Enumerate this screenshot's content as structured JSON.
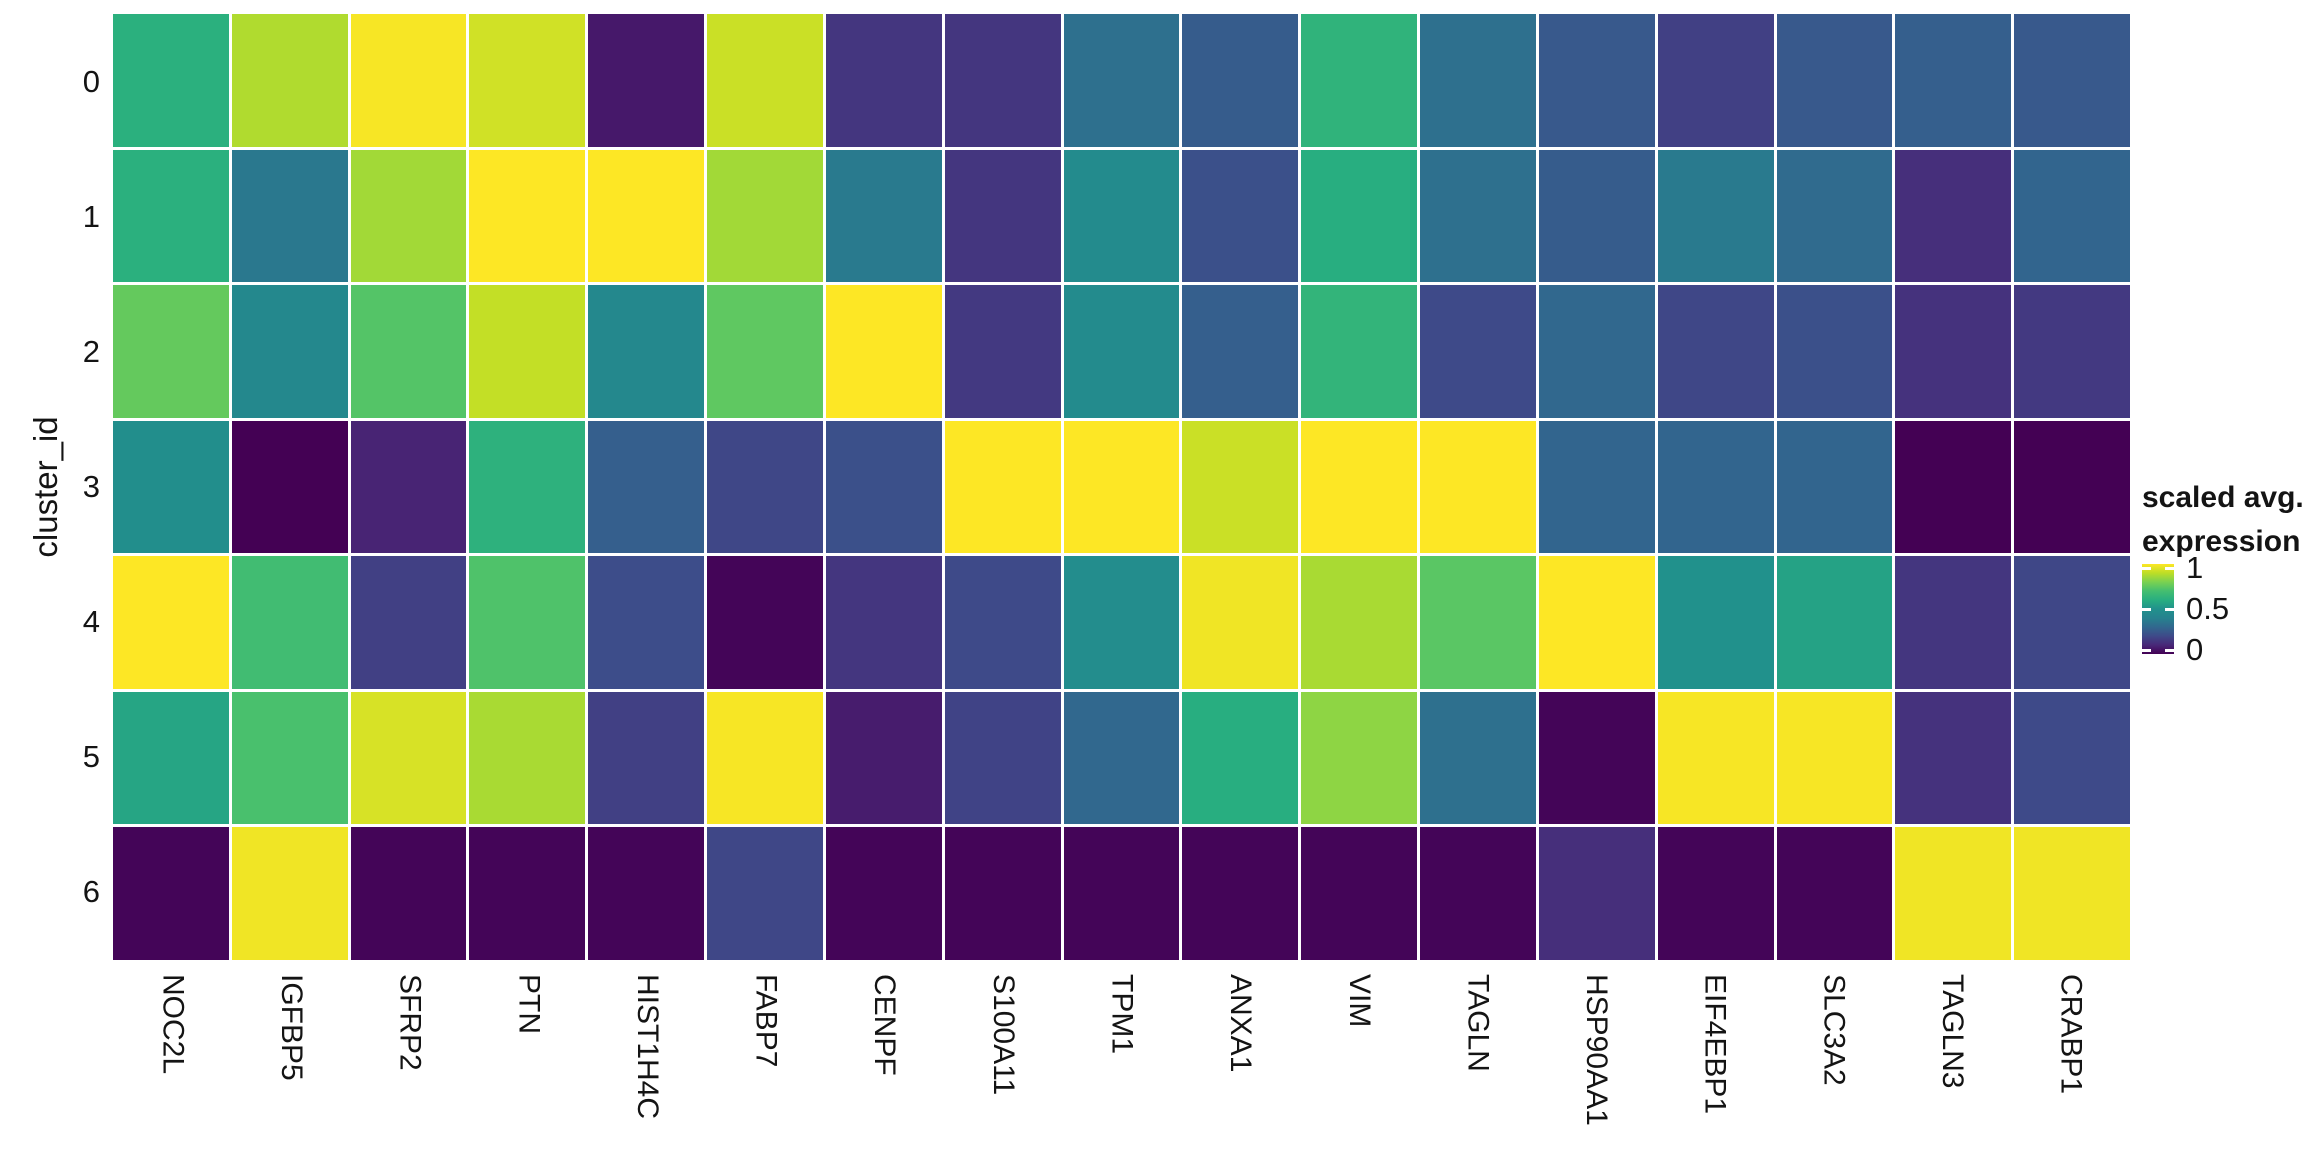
{
  "figure": {
    "background": "#ffffff",
    "text_color": "#141414"
  },
  "chart_data": {
    "type": "heatmap",
    "title": "",
    "xlabel": "",
    "ylabel": "cluster_id",
    "x_categories": [
      "NOC2L",
      "IGFBP5",
      "SFRP2",
      "PTN",
      "HIST1H4C",
      "FABP7",
      "CENPF",
      "S100A11",
      "TPM1",
      "ANXA1",
      "VIM",
      "TAGLN",
      "HSP90AA1",
      "EIF4EBP1",
      "SLC3A2",
      "TAGLN3",
      "CRABP1"
    ],
    "y_categories": [
      "0",
      "1",
      "2",
      "3",
      "4",
      "5",
      "6"
    ],
    "values": [
      [
        0.61,
        0.88,
        0.99,
        0.93,
        0.06,
        0.92,
        0.14,
        0.14,
        0.33,
        0.26,
        0.63,
        0.33,
        0.25,
        0.17,
        0.25,
        0.27,
        0.25
      ],
      [
        0.61,
        0.36,
        0.86,
        1.0,
        1.0,
        0.86,
        0.37,
        0.14,
        0.46,
        0.22,
        0.6,
        0.33,
        0.26,
        0.37,
        0.31,
        0.12,
        0.29
      ],
      [
        0.76,
        0.44,
        0.73,
        0.91,
        0.44,
        0.75,
        1.0,
        0.15,
        0.46,
        0.27,
        0.64,
        0.2,
        0.3,
        0.19,
        0.22,
        0.13,
        0.15
      ],
      [
        0.48,
        0.0,
        0.09,
        0.62,
        0.27,
        0.19,
        0.22,
        1.0,
        1.0,
        0.92,
        1.0,
        1.0,
        0.29,
        0.29,
        0.29,
        0.0,
        0.0
      ],
      [
        1.0,
        0.69,
        0.17,
        0.72,
        0.21,
        0.01,
        0.14,
        0.2,
        0.47,
        0.98,
        0.87,
        0.74,
        1.0,
        0.5,
        0.56,
        0.14,
        0.19
      ],
      [
        0.57,
        0.71,
        0.94,
        0.87,
        0.17,
        0.99,
        0.07,
        0.18,
        0.3,
        0.6,
        0.83,
        0.33,
        0.01,
        0.99,
        0.99,
        0.13,
        0.2
      ],
      [
        0.01,
        0.98,
        0.01,
        0.01,
        0.01,
        0.19,
        0.01,
        0.01,
        0.01,
        0.01,
        0.01,
        0.01,
        0.12,
        0.01,
        0.01,
        0.98,
        0.98
      ]
    ],
    "value_range": [
      0,
      1
    ],
    "colormap": "viridis",
    "colormap_stops": [
      "#440154",
      "#482878",
      "#3e4a89",
      "#31688e",
      "#26828e",
      "#21918c",
      "#28ae80",
      "#44be70",
      "#7ad151",
      "#bdde26",
      "#fde725"
    ],
    "grid_line_color": "#ffffff",
    "legend_position": "right",
    "legend": {
      "title_lines": [
        "scaled avg.",
        "expression"
      ],
      "ticks": [
        {
          "label": "1",
          "value": 1.0
        },
        {
          "label": "0.5",
          "value": 0.5
        },
        {
          "label": "0",
          "value": 0.0
        }
      ]
    }
  }
}
